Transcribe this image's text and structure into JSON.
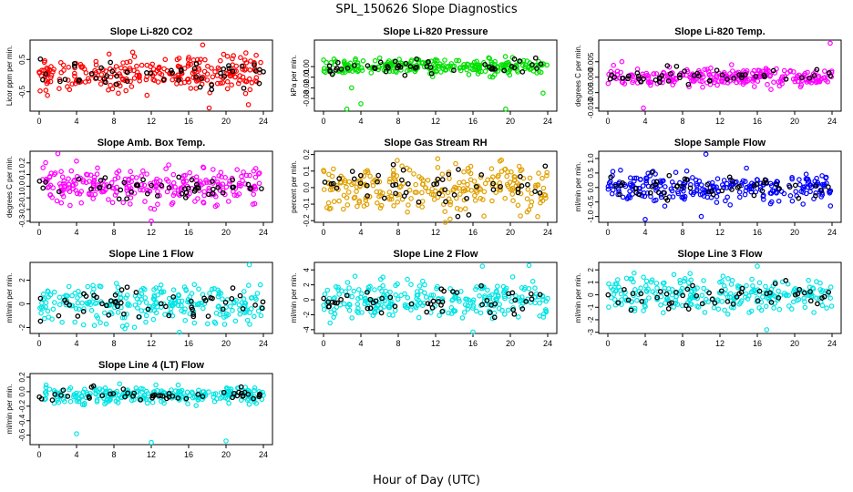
{
  "figure": {
    "title": "SPL_150626 Slope Diagnostics",
    "xlabel": "Hour of Day (UTC)",
    "xticks": [
      0,
      4,
      8,
      12,
      16,
      20,
      24
    ]
  },
  "chart_data": [
    {
      "type": "scatter",
      "title": "Slope Li-820 CO2",
      "ylabel": "Licor ppm per min.",
      "color": "#ff0000",
      "xlim": [
        0,
        24
      ],
      "ylim": [
        -1.1,
        1.1
      ],
      "yticks": [
        -0.5,
        0.5
      ],
      "ytick_labels": [
        "-0.5",
        "0.5"
      ],
      "series": [
        {
          "color": "#ff0000",
          "center": 0.05,
          "spread": 0.25,
          "outliers": [
            [
              17.5,
              0.95
            ],
            [
              18.2,
              -1.0
            ],
            [
              22.4,
              -0.9
            ]
          ]
        }
      ]
    },
    {
      "type": "scatter",
      "title": "Slope Li-820 Pressure",
      "ylabel": "kPa per min.",
      "color": "#00e000",
      "xlim": [
        0,
        24
      ],
      "ylim": [
        -0.042,
        0.025
      ],
      "yticks": [
        0.0,
        -0.01,
        -0.02,
        -0.03
      ],
      "ytick_labels": [
        "0.00",
        "-0.01",
        "-0.02",
        "-0.03"
      ],
      "series": [
        {
          "color": "#00e000",
          "center": 0.0,
          "spread": 0.004,
          "outliers": [
            [
              2.5,
              -0.04
            ],
            [
              4.0,
              -0.035
            ],
            [
              19.5,
              -0.04
            ],
            [
              23.5,
              -0.025
            ],
            [
              3.0,
              -0.02
            ]
          ]
        }
      ]
    },
    {
      "type": "scatter",
      "title": "Slope Li-820 Temp.",
      "ylabel": "degrees C per min.",
      "color": "#ff00ff",
      "xlim": [
        0,
        24
      ],
      "ylim": [
        -0.011,
        0.012
      ],
      "yticks": [
        -0.01,
        -0.005,
        0.0,
        0.005
      ],
      "ytick_labels": [
        "-0.010",
        "-0.005",
        "0.000",
        "0.005"
      ],
      "series": [
        {
          "color": "#ff00ff",
          "center": 0.0,
          "spread": 0.0015,
          "outliers": [
            [
              3.8,
              -0.01
            ],
            [
              23.8,
              0.011
            ],
            [
              1.5,
              0.005
            ]
          ]
        }
      ]
    },
    {
      "type": "scatter",
      "title": "Slope Amb. Box Temp.",
      "ylabel": "degrees C per min.",
      "color": "#ff00ff",
      "xlim": [
        0,
        24
      ],
      "ylim": [
        -0.31,
        0.3
      ],
      "yticks": [
        -0.3,
        -0.2,
        -0.1,
        0.0,
        0.1,
        0.2
      ],
      "ytick_labels": [
        "-0.3",
        "-0.2",
        "-0.1",
        "0.0",
        "0.1",
        "0.2"
      ],
      "series": [
        {
          "color": "#ff00ff",
          "center": 0.0,
          "spread": 0.08,
          "outliers": [
            [
              12.0,
              -0.3
            ],
            [
              2.0,
              0.28
            ]
          ]
        }
      ]
    },
    {
      "type": "scatter",
      "title": "Slope Gas Stream RH",
      "ylabel": "percent per min.",
      "color": "#e0a000",
      "xlim": [
        0,
        24
      ],
      "ylim": [
        -0.21,
        0.22
      ],
      "yticks": [
        -0.2,
        -0.1,
        0.0,
        0.1,
        0.2
      ],
      "ytick_labels": [
        "-0.2",
        "-0.1",
        "0.0",
        "0.1",
        "0.2"
      ],
      "series": [
        {
          "color": "#e0a000",
          "center": 0.0,
          "spread": 0.08,
          "outliers": []
        }
      ]
    },
    {
      "type": "scatter",
      "title": "Slope Sample Flow",
      "ylabel": "ml/min per min.",
      "color": "#0000ff",
      "xlim": [
        0,
        24
      ],
      "ylim": [
        -1.2,
        1.25
      ],
      "yticks": [
        -1.0,
        -0.5,
        0.0,
        0.5,
        1.0
      ],
      "ytick_labels": [
        "-1.0",
        "-0.5",
        "0.0",
        "0.5",
        "1.0"
      ],
      "series": [
        {
          "color": "#0000ff",
          "center": 0.0,
          "spread": 0.25,
          "outliers": [
            [
              10.5,
              1.15
            ],
            [
              4.0,
              -1.1
            ],
            [
              10.0,
              -1.0
            ]
          ]
        }
      ]
    },
    {
      "type": "scatter",
      "title": "Slope Line 1 Flow",
      "ylabel": "ml/min per min.",
      "color": "#00e5e5",
      "xlim": [
        0,
        24
      ],
      "ylim": [
        -2.5,
        3.5
      ],
      "yticks": [
        -2,
        0,
        2
      ],
      "ytick_labels": [
        "-2",
        "0",
        "2"
      ],
      "series": [
        {
          "color": "#00e5e5",
          "center": 0.0,
          "spread": 0.9,
          "outliers": [
            [
              22.5,
              3.3
            ],
            [
              15.0,
              -2.4
            ]
          ]
        }
      ]
    },
    {
      "type": "scatter",
      "title": "Slope Line 2 Flow",
      "ylabel": "ml/min per min.",
      "color": "#00e5e5",
      "xlim": [
        0,
        24
      ],
      "ylim": [
        -4.5,
        5
      ],
      "yticks": [
        -4,
        -2,
        0,
        2,
        4
      ],
      "ytick_labels": [
        "-4",
        "-2",
        "0",
        "2",
        "4"
      ],
      "series": [
        {
          "color": "#00e5e5",
          "center": 0.0,
          "spread": 1.3,
          "outliers": [
            [
              16.0,
              -4.3
            ],
            [
              17.0,
              4.5
            ],
            [
              22.0,
              4.6
            ]
          ]
        }
      ]
    },
    {
      "type": "scatter",
      "title": "Slope Line 3 Flow",
      "ylabel": "ml/min per min.",
      "color": "#00e5e5",
      "xlim": [
        0,
        24
      ],
      "ylim": [
        -3.1,
        2.6
      ],
      "yticks": [
        -3,
        -2,
        -1,
        0,
        1,
        2
      ],
      "ytick_labels": [
        "-3",
        "-2",
        "-1",
        "0",
        "1",
        "2"
      ],
      "series": [
        {
          "color": "#00e5e5",
          "center": 0.0,
          "spread": 0.7,
          "outliers": [
            [
              17.0,
              -2.8
            ],
            [
              16.0,
              2.3
            ]
          ]
        }
      ]
    },
    {
      "type": "scatter",
      "title": "Slope Line 4 (LT) Flow",
      "ylabel": "ml/min per min.",
      "color": "#00e5e5",
      "xlim": [
        0,
        24
      ],
      "ylim": [
        -0.73,
        0.25
      ],
      "yticks": [
        -0.6,
        -0.4,
        -0.2,
        0.0,
        0.2
      ],
      "ytick_labels": [
        "-0.6",
        "-0.4",
        "-0.2",
        "0.0",
        "0.2"
      ],
      "series": [
        {
          "color": "#00e5e5",
          "center": -0.05,
          "spread": 0.06,
          "outliers": [
            [
              4.0,
              -0.58
            ],
            [
              12.0,
              -0.7
            ],
            [
              20.0,
              -0.68
            ]
          ]
        }
      ]
    }
  ]
}
